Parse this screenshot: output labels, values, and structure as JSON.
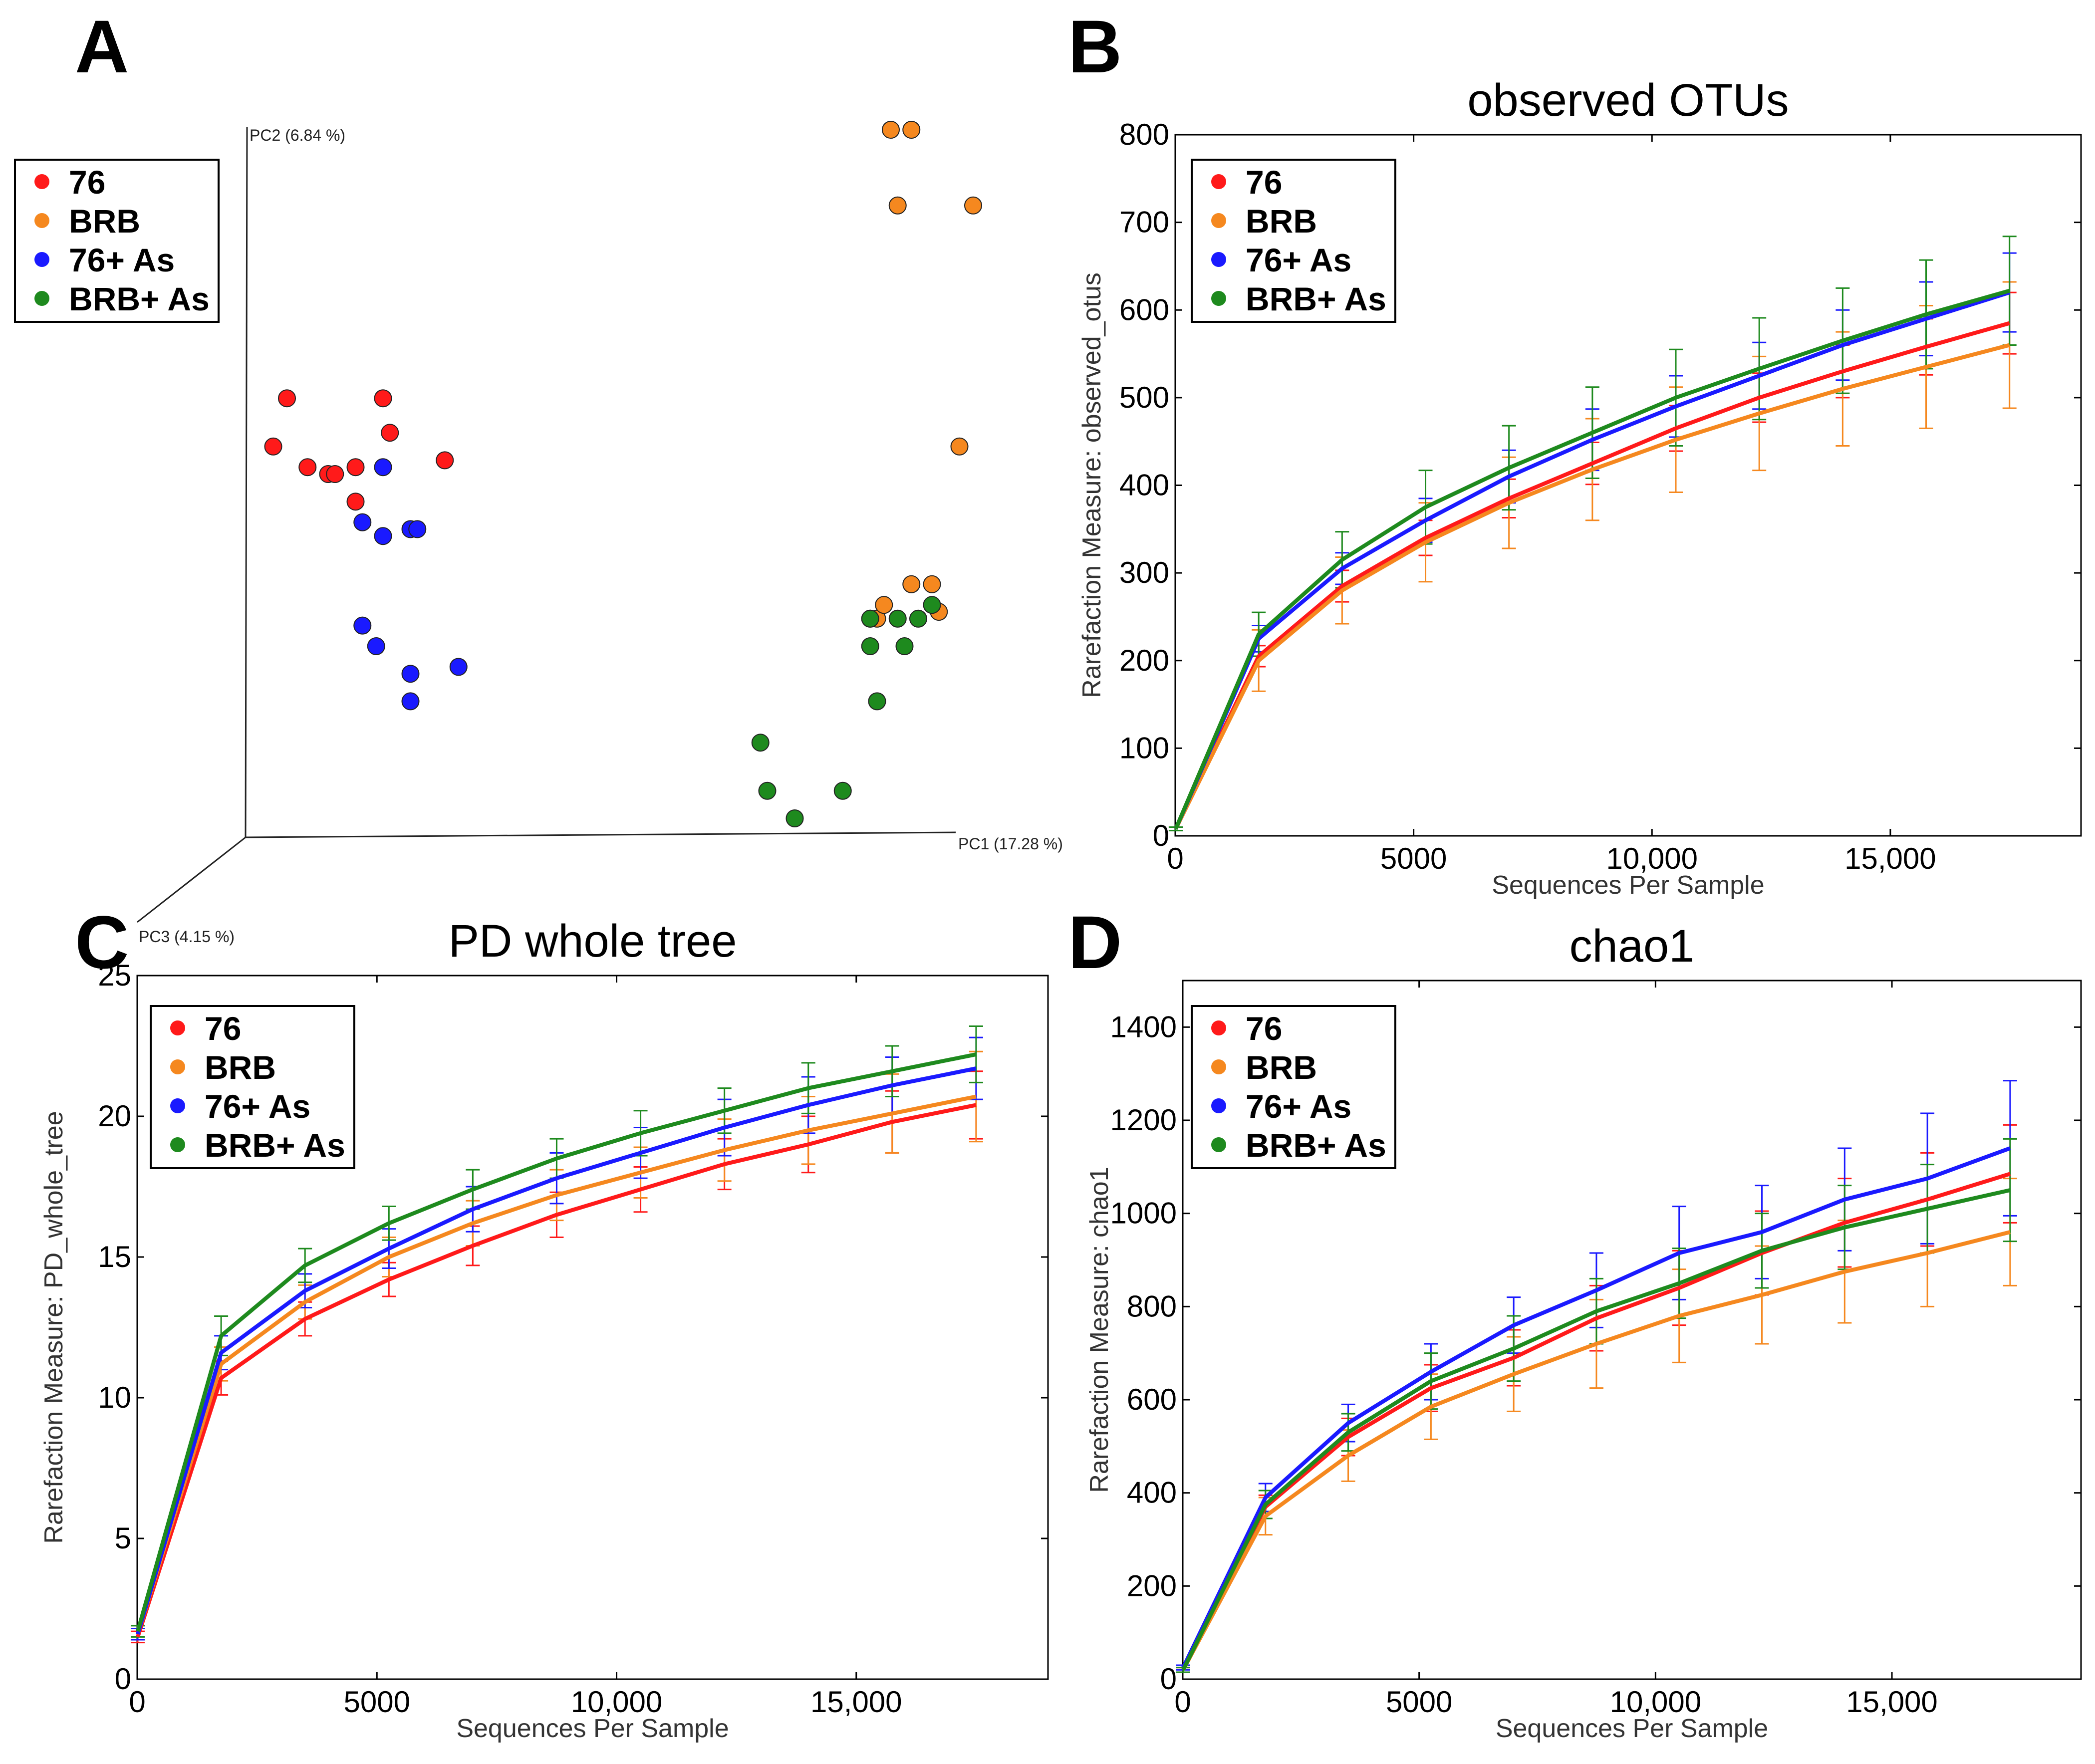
{
  "legend": {
    "entries": [
      {
        "label": "76",
        "color": "#ff1a1a"
      },
      {
        "label": "BRB",
        "color": "#f5881f"
      },
      {
        "label": "76+ As",
        "color": "#1a1aff"
      },
      {
        "label": "BRB+ As",
        "color": "#1e8a1e"
      }
    ]
  },
  "chart_data": [
    {
      "panel": "A",
      "type": "scatter",
      "title": "",
      "axes": {
        "pc1": "PC1 (17.28 %)",
        "pc2": "PC2 (6.84 %)",
        "pc3": "PC3 (4.15 %)"
      },
      "xlim": [
        0,
        100
      ],
      "ylim": [
        0,
        100
      ],
      "series": [
        {
          "name": "76",
          "points": [
            [
              2,
              54
            ],
            [
              4,
              61
            ],
            [
              7,
              51
            ],
            [
              10,
              50
            ],
            [
              11,
              50
            ],
            [
              14,
              51
            ],
            [
              14,
              46
            ],
            [
              18,
              61
            ],
            [
              19,
              56
            ],
            [
              27,
              52
            ]
          ]
        },
        {
          "name": "BRB",
          "points": [
            [
              92,
              100
            ],
            [
              95,
              100
            ],
            [
              93,
              89
            ],
            [
              104,
              89
            ],
            [
              102,
              54
            ],
            [
              95,
              34
            ],
            [
              89,
              29
            ],
            [
              90,
              29
            ],
            [
              98,
              34
            ],
            [
              99,
              30
            ],
            [
              91,
              31
            ]
          ]
        },
        {
          "name": "76+ As",
          "points": [
            [
              15,
              43
            ],
            [
              18,
              51
            ],
            [
              18,
              41
            ],
            [
              22,
              42
            ],
            [
              23,
              42
            ],
            [
              15,
              28
            ],
            [
              17,
              25
            ],
            [
              22,
              21
            ],
            [
              29,
              22
            ],
            [
              22,
              17
            ]
          ]
        },
        {
          "name": "BRB+ As",
          "points": [
            [
              89,
              29
            ],
            [
              93,
              29
            ],
            [
              96,
              29
            ],
            [
              89,
              25
            ],
            [
              94,
              25
            ],
            [
              90,
              17
            ],
            [
              73,
              11
            ],
            [
              74,
              4
            ],
            [
              78,
              0
            ],
            [
              85,
              4
            ],
            [
              98,
              31
            ]
          ]
        }
      ]
    },
    {
      "panel": "B",
      "type": "line",
      "title": "observed OTUs",
      "xlabel": "Sequences Per Sample",
      "ylabel": "Rarefaction Measure: observed_otus",
      "xlim": [
        0,
        19000
      ],
      "ylim": [
        0,
        800
      ],
      "xticks": [
        0,
        5000,
        10000,
        15000
      ],
      "xtick_labels": [
        "0",
        "5000",
        "10,000",
        "15,000"
      ],
      "yticks": [
        0,
        100,
        200,
        300,
        400,
        500,
        600,
        700,
        800
      ],
      "ytick_labels": [
        "0",
        "100",
        "200",
        "300",
        "400",
        "500",
        "600",
        "700",
        "800"
      ],
      "x": [
        10,
        1750,
        3500,
        5250,
        7000,
        8750,
        10500,
        12250,
        14000,
        15750,
        17500
      ],
      "series": [
        {
          "name": "76",
          "values": [
            8,
            205,
            285,
            340,
            385,
            425,
            465,
            500,
            530,
            558,
            585
          ],
          "err": [
            2,
            12,
            18,
            20,
            22,
            24,
            26,
            28,
            30,
            32,
            35
          ]
        },
        {
          "name": "BRB",
          "values": [
            8,
            200,
            280,
            335,
            380,
            418,
            452,
            482,
            510,
            535,
            560
          ],
          "err": [
            2,
            35,
            38,
            45,
            52,
            58,
            60,
            65,
            65,
            70,
            72
          ]
        },
        {
          "name": "76+ As",
          "values": [
            8,
            225,
            305,
            360,
            410,
            452,
            490,
            525,
            560,
            590,
            620
          ],
          "err": [
            2,
            15,
            18,
            25,
            30,
            35,
            35,
            38,
            40,
            42,
            45
          ]
        },
        {
          "name": "BRB+ As",
          "values": [
            8,
            230,
            315,
            375,
            420,
            460,
            500,
            533,
            565,
            595,
            622
          ],
          "err": [
            2,
            25,
            32,
            42,
            48,
            52,
            55,
            58,
            60,
            62,
            62
          ]
        }
      ]
    },
    {
      "panel": "C",
      "type": "line",
      "title": "PD whole tree",
      "xlabel": "Sequences Per Sample",
      "ylabel": "Rarefaction Measure: PD_whole_tree",
      "xlim": [
        0,
        19000
      ],
      "ylim": [
        0,
        25
      ],
      "xticks": [
        0,
        5000,
        10000,
        15000
      ],
      "xtick_labels": [
        "0",
        "5000",
        "10,000",
        "15,000"
      ],
      "yticks": [
        0,
        5,
        10,
        15,
        20,
        25
      ],
      "ytick_labels": [
        "0",
        "5",
        "10",
        "15",
        "20",
        "25"
      ],
      "x": [
        10,
        1750,
        3500,
        5250,
        7000,
        8750,
        10500,
        12250,
        14000,
        15750,
        17500
      ],
      "series": [
        {
          "name": "76",
          "values": [
            1.5,
            10.7,
            12.8,
            14.2,
            15.4,
            16.5,
            17.4,
            18.3,
            19.0,
            19.8,
            20.4
          ],
          "err": [
            0.2,
            0.6,
            0.6,
            0.6,
            0.7,
            0.8,
            0.8,
            0.9,
            1.0,
            1.1,
            1.2
          ]
        },
        {
          "name": "BRB",
          "values": [
            1.6,
            11.2,
            13.4,
            15.0,
            16.2,
            17.2,
            18.0,
            18.8,
            19.5,
            20.1,
            20.7
          ],
          "err": [
            0.2,
            0.6,
            0.6,
            0.7,
            0.8,
            0.9,
            0.9,
            1.1,
            1.2,
            1.4,
            1.6
          ]
        },
        {
          "name": "76+ As",
          "values": [
            1.6,
            11.6,
            13.8,
            15.3,
            16.7,
            17.8,
            18.7,
            19.6,
            20.4,
            21.1,
            21.7
          ],
          "err": [
            0.2,
            0.6,
            0.6,
            0.7,
            0.8,
            0.9,
            0.9,
            1.0,
            1.0,
            1.0,
            1.1
          ]
        },
        {
          "name": "BRB+ As",
          "values": [
            1.7,
            12.2,
            14.7,
            16.2,
            17.4,
            18.5,
            19.4,
            20.2,
            21.0,
            21.6,
            22.2
          ],
          "err": [
            0.2,
            0.7,
            0.6,
            0.6,
            0.7,
            0.7,
            0.8,
            0.8,
            0.9,
            0.9,
            1.0
          ]
        }
      ]
    },
    {
      "panel": "D",
      "type": "line",
      "title": "chao1",
      "xlabel": "Sequences Per Sample",
      "ylabel": "Rarefaction Measure: chao1",
      "xlim": [
        0,
        19000
      ],
      "ylim": [
        0,
        1500
      ],
      "xticks": [
        0,
        5000,
        10000,
        15000
      ],
      "xtick_labels": [
        "0",
        "5000",
        "10,000",
        "15,000"
      ],
      "yticks": [
        0,
        200,
        400,
        600,
        800,
        1000,
        1200,
        1400
      ],
      "ytick_labels": [
        "0",
        "200",
        "400",
        "600",
        "800",
        "1000",
        "1200",
        "1400"
      ],
      "x": [
        10,
        1750,
        3500,
        5250,
        7000,
        8750,
        10500,
        12250,
        14000,
        15750,
        17500
      ],
      "series": [
        {
          "name": "76",
          "values": [
            20,
            370,
            520,
            625,
            690,
            775,
            840,
            915,
            980,
            1030,
            1085
          ],
          "err": [
            5,
            25,
            40,
            50,
            60,
            70,
            80,
            90,
            95,
            100,
            105
          ]
        },
        {
          "name": "BRB",
          "values": [
            20,
            350,
            480,
            585,
            655,
            720,
            780,
            825,
            875,
            915,
            960
          ],
          "err": [
            5,
            40,
            55,
            70,
            80,
            95,
            100,
            105,
            110,
            115,
            115
          ]
        },
        {
          "name": "76+ As",
          "values": [
            25,
            390,
            550,
            660,
            760,
            835,
            915,
            960,
            1030,
            1075,
            1140
          ],
          "err": [
            5,
            30,
            40,
            60,
            60,
            80,
            100,
            100,
            110,
            140,
            145
          ]
        },
        {
          "name": "BRB+ As",
          "values": [
            20,
            375,
            530,
            640,
            710,
            790,
            850,
            920,
            970,
            1010,
            1050
          ],
          "err": [
            5,
            30,
            40,
            60,
            70,
            70,
            75,
            80,
            90,
            95,
            110
          ]
        }
      ]
    }
  ]
}
